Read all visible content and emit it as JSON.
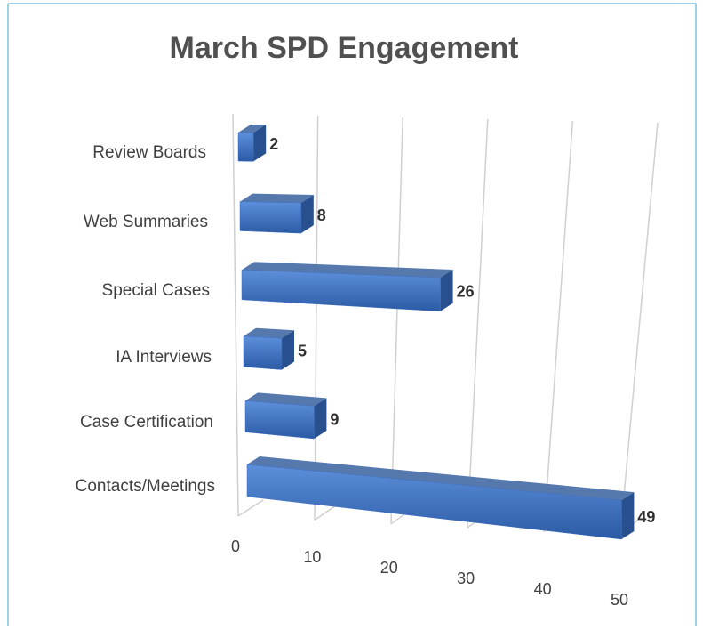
{
  "chart_data": {
    "type": "bar",
    "orientation": "horizontal",
    "title": "March SPD Engagement",
    "categories": [
      "Review Boards",
      "Web Summaries",
      "Special Cases",
      "IA Interviews",
      "Case Certification",
      "Contacts/Meetings"
    ],
    "values": [
      2,
      8,
      26,
      5,
      9,
      49
    ],
    "color": "#3a6cbf",
    "xlim": [
      0,
      50
    ],
    "xticks": [
      0,
      10,
      20,
      30,
      40,
      50
    ],
    "grid": true
  }
}
